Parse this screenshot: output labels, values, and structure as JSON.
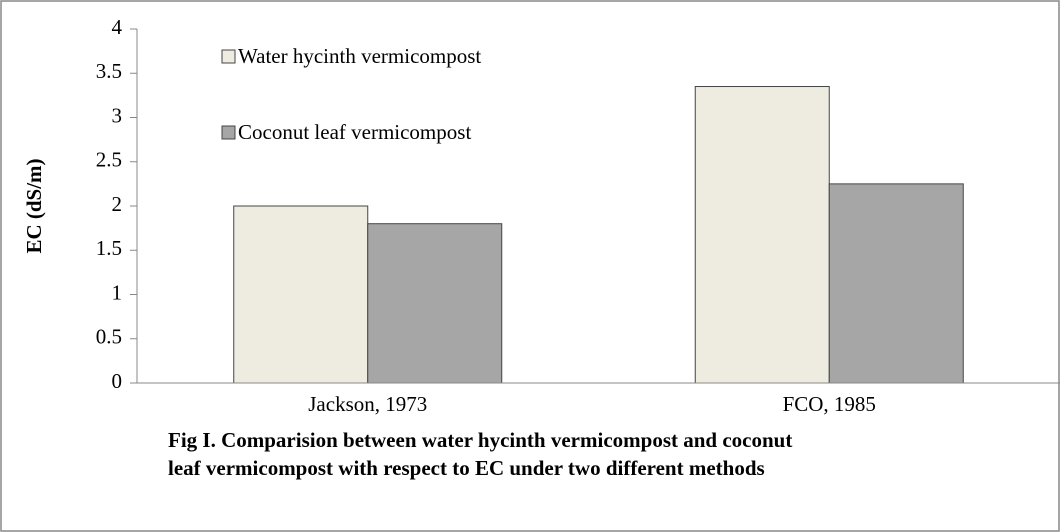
{
  "chart_data": {
    "type": "bar",
    "title": "Fig I. Comparision between water hycinth vermicompost and coconut leaf vermicompost with respect to EC under two different methods",
    "y_label": "EC (dS/m)",
    "categories": [
      "Jackson, 1973",
      "FCO, 1985"
    ],
    "series": [
      {
        "name": "Water hycinth vermicompost",
        "color": "#eeece1",
        "values": [
          2.0,
          3.35
        ]
      },
      {
        "name": "Coconut leaf vermicompost",
        "color": "#a6a6a6",
        "values": [
          1.8,
          2.25
        ]
      }
    ],
    "ylim": [
      0,
      4
    ],
    "yticks": [
      0,
      0.5,
      1,
      1.5,
      2,
      2.5,
      3,
      3.5,
      4
    ],
    "grid": false,
    "legend": "top-left"
  }
}
